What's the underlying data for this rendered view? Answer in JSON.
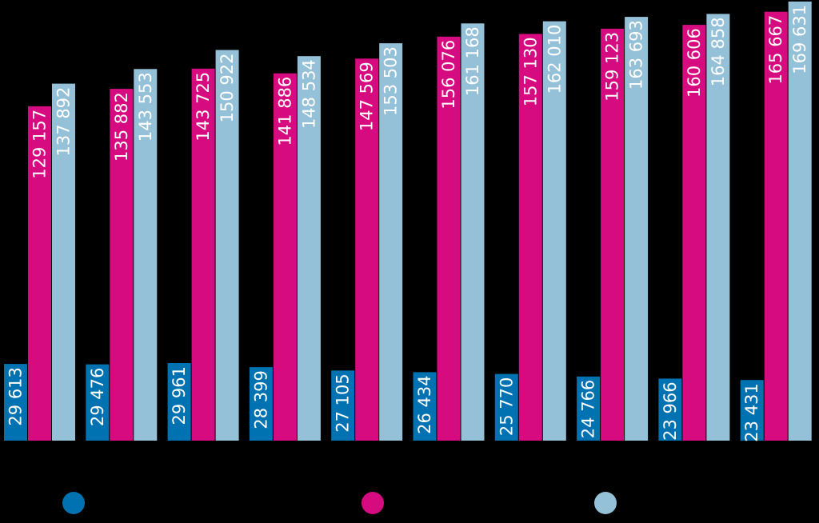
{
  "chart_data": {
    "type": "bar",
    "title": "",
    "xlabel": "",
    "ylabel": "",
    "ylim": [
      0,
      170000
    ],
    "grid": false,
    "legend_position": "bottom",
    "categories": [
      "",
      "",
      "",
      "",
      "",
      "",
      "",
      "",
      "",
      ""
    ],
    "series": [
      {
        "color": "#0072b1",
        "values": [
          29613,
          29476,
          29961,
          28399,
          27105,
          26434,
          25770,
          24766,
          23966,
          23431
        ],
        "labels": [
          "29 613",
          "29 476",
          "29 961",
          "28 399",
          "27 105",
          "26 434",
          "25 770",
          "24 766",
          "23 966",
          "23 431"
        ]
      },
      {
        "color": "#d70b80",
        "values": [
          129157,
          135882,
          143725,
          141886,
          147569,
          156076,
          157130,
          159123,
          160606,
          165667
        ],
        "labels": [
          "129 157",
          "135 882",
          "143 725",
          "141 886",
          "147 569",
          "156 076",
          "157 130",
          "159 123",
          "160 606",
          "165 667"
        ]
      },
      {
        "color": "#95c1d8",
        "values": [
          137892,
          143553,
          150922,
          148534,
          153503,
          161168,
          162010,
          163693,
          164858,
          169631
        ],
        "labels": [
          "137 892",
          "143 553",
          "150 922",
          "148 534",
          "153 503",
          "161 168",
          "162 010",
          "163 693",
          "164 858",
          "169 631"
        ]
      }
    ]
  }
}
